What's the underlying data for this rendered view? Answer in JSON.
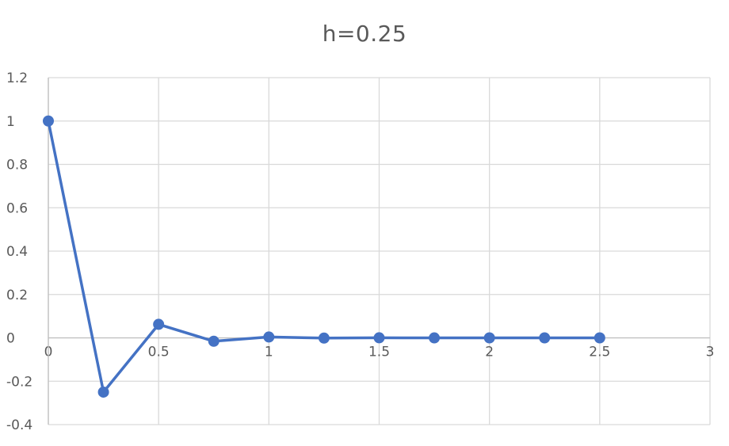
{
  "chart_data": {
    "type": "scatter",
    "title": "h=0.25",
    "xlabel": "",
    "ylabel": "",
    "xlim": [
      0,
      3
    ],
    "ylim": [
      -0.4,
      1.2
    ],
    "xticks": [
      0,
      0.5,
      1,
      1.5,
      2,
      2.5,
      3
    ],
    "xtick_labels": [
      "0",
      "0.5",
      "1",
      "1.5",
      "2",
      "2.5",
      "3"
    ],
    "yticks": [
      1.2,
      1,
      0.8,
      0.6,
      0.4,
      0.2,
      0,
      -0.2,
      -0.4
    ],
    "ytick_labels": [
      "1.2",
      "1",
      "0.8",
      "0.6",
      "0.4",
      "0.2",
      "0",
      "-0.2",
      "-0.4"
    ],
    "grid": true,
    "legend": "none",
    "series": [
      {
        "x": [
          0,
          0.25,
          0.5,
          0.75,
          1,
          1.25,
          1.5,
          1.75,
          2,
          2.25,
          2.5
        ],
        "y": [
          1,
          -0.25,
          0.0625,
          -0.015625,
          0.00390625,
          -0.0009765625,
          0.000244140625,
          -6.103515625e-05,
          1.52587890625e-05,
          -3.814697265625e-06,
          9.5367431640625e-07
        ],
        "color": "#4472C4",
        "markers": true,
        "lines": true
      }
    ],
    "colors": {
      "line": "#4472C4",
      "grid": "#D9D9D9",
      "text": "#595959"
    }
  }
}
